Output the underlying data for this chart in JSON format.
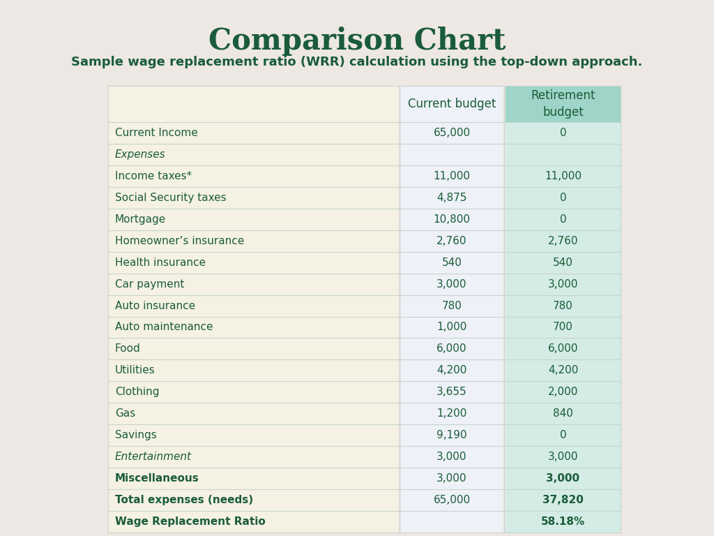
{
  "title": "Comparison Chart",
  "subtitle": "Sample wage replacement ratio (WRR) calculation using the top-down approach.",
  "background_color": "#ede8e3",
  "label_col_bg": "#f5f2e3",
  "current_col_bg": "#eef1f7",
  "retire_col_bg": "#d4ece5",
  "retire_header_bg": "#9fd4c8",
  "current_header_bg": "#eef1f7",
  "text_color": "#1a5c3a",
  "divider_color": "#c8d4ce",
  "rows": [
    {
      "label": "Current Income",
      "col1": "65,000",
      "col2": "0",
      "bold_label": false,
      "italic_label": false
    },
    {
      "label": "Expenses",
      "col1": "",
      "col2": "",
      "bold_label": false,
      "italic_label": true
    },
    {
      "label": "Income taxes*",
      "col1": "11,000",
      "col2": "11,000",
      "bold_label": false,
      "italic_label": false
    },
    {
      "label": "Social Security taxes",
      "col1": "4,875",
      "col2": "0",
      "bold_label": false,
      "italic_label": false
    },
    {
      "label": "Mortgage",
      "col1": "10,800",
      "col2": "0",
      "bold_label": false,
      "italic_label": false
    },
    {
      "label": "Homeowner’s insurance",
      "col1": "2,760",
      "col2": "2,760",
      "bold_label": false,
      "italic_label": false
    },
    {
      "label": "Health insurance",
      "col1": "540",
      "col2": "540",
      "bold_label": false,
      "italic_label": false
    },
    {
      "label": "Car payment",
      "col1": "3,000",
      "col2": "3,000",
      "bold_label": false,
      "italic_label": false
    },
    {
      "label": "Auto insurance",
      "col1": "780",
      "col2": "780",
      "bold_label": false,
      "italic_label": false
    },
    {
      "label": "Auto maintenance",
      "col1": "1,000",
      "col2": "700",
      "bold_label": false,
      "italic_label": false
    },
    {
      "label": "Food",
      "col1": "6,000",
      "col2": "6,000",
      "bold_label": false,
      "italic_label": false
    },
    {
      "label": "Utilities",
      "col1": "4,200",
      "col2": "4,200",
      "bold_label": false,
      "italic_label": false
    },
    {
      "label": "Clothing",
      "col1": "3,655",
      "col2": "2,000",
      "bold_label": false,
      "italic_label": false
    },
    {
      "label": "Gas",
      "col1": "1,200",
      "col2": "840",
      "bold_label": false,
      "italic_label": false
    },
    {
      "label": "Savings",
      "col1": "9,190",
      "col2": "0",
      "bold_label": false,
      "italic_label": false
    },
    {
      "label": "Entertainment",
      "col1": "3,000",
      "col2": "3,000",
      "bold_label": false,
      "italic_label": true
    },
    {
      "label": "Miscellaneous",
      "col1": "3,000",
      "col2": "3,000",
      "bold_label": true,
      "italic_label": false
    },
    {
      "label": "Total expenses (needs)",
      "col1": "65,000",
      "col2": "37,820",
      "bold_label": true,
      "italic_label": false
    },
    {
      "label": "Wage Replacement Ratio",
      "col1": "",
      "col2": "58.18%",
      "bold_label": true,
      "italic_label": false
    }
  ],
  "title_fontsize": 30,
  "subtitle_fontsize": 13,
  "row_fontsize": 11,
  "header_fontsize": 12
}
